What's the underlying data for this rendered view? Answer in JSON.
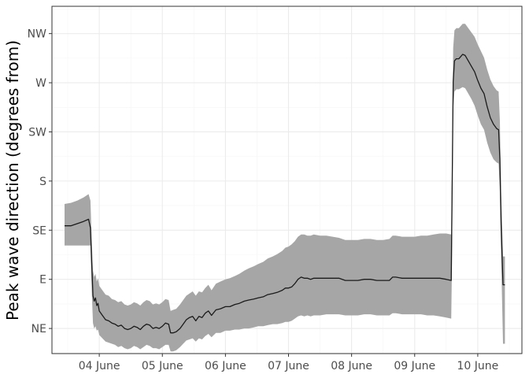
{
  "chart_data": {
    "type": "line",
    "title": "",
    "xlabel": "",
    "ylabel": "Peak wave direction (degrees from)",
    "x_unit": "day (June)",
    "x_ticks": [
      {
        "value": 4,
        "label": "04 June"
      },
      {
        "value": 5,
        "label": "05 June"
      },
      {
        "value": 6,
        "label": "06 June"
      },
      {
        "value": 7,
        "label": "07 June"
      },
      {
        "value": 8,
        "label": "08 June"
      },
      {
        "value": 9,
        "label": "09 June"
      },
      {
        "value": 10,
        "label": "10 June"
      }
    ],
    "y_ticks": [
      {
        "value": 45,
        "label": "NE"
      },
      {
        "value": 90,
        "label": "E"
      },
      {
        "value": 135,
        "label": "SE"
      },
      {
        "value": 180,
        "label": "S"
      },
      {
        "value": 225,
        "label": "SW"
      },
      {
        "value": 270,
        "label": "W"
      },
      {
        "value": 315,
        "label": "NW"
      }
    ],
    "xlim": [
      3.25,
      10.7
    ],
    "ylim": [
      22,
      340
    ],
    "grid": true,
    "colors": {
      "line": "#1a1a1a",
      "band": "#a6a6a6",
      "grid_major": "#ebebeb",
      "grid_minor": "#f5f5f5",
      "panel_border": "#333333"
    },
    "series": [
      {
        "points": [
          [
            3.45,
            139
          ],
          [
            3.55,
            139
          ],
          [
            3.65,
            141
          ],
          [
            3.75,
            143
          ],
          [
            3.83,
            145
          ],
          [
            3.86,
            137
          ],
          [
            3.88,
            105
          ],
          [
            3.9,
            75
          ],
          [
            3.92,
            70
          ],
          [
            3.94,
            73
          ],
          [
            3.96,
            66
          ],
          [
            3.98,
            68
          ],
          [
            4.0,
            61
          ],
          [
            4.05,
            57
          ],
          [
            4.1,
            53
          ],
          [
            4.15,
            52
          ],
          [
            4.2,
            50
          ],
          [
            4.25,
            49
          ],
          [
            4.3,
            47
          ],
          [
            4.35,
            48
          ],
          [
            4.4,
            45
          ],
          [
            4.45,
            44
          ],
          [
            4.5,
            45
          ],
          [
            4.55,
            47
          ],
          [
            4.6,
            46
          ],
          [
            4.65,
            44
          ],
          [
            4.7,
            47
          ],
          [
            4.75,
            49
          ],
          [
            4.8,
            48
          ],
          [
            4.85,
            45
          ],
          [
            4.9,
            46
          ],
          [
            4.95,
            45
          ],
          [
            5.0,
            47
          ],
          [
            5.05,
            50
          ],
          [
            5.1,
            49
          ],
          [
            5.13,
            41
          ],
          [
            5.17,
            41
          ],
          [
            5.22,
            42
          ],
          [
            5.28,
            45
          ],
          [
            5.33,
            49
          ],
          [
            5.38,
            53
          ],
          [
            5.43,
            55
          ],
          [
            5.48,
            56
          ],
          [
            5.53,
            52
          ],
          [
            5.58,
            56
          ],
          [
            5.63,
            55
          ],
          [
            5.68,
            59
          ],
          [
            5.73,
            61
          ],
          [
            5.78,
            57
          ],
          [
            5.85,
            62
          ],
          [
            5.92,
            63
          ],
          [
            6.0,
            65
          ],
          [
            6.07,
            65
          ],
          [
            6.15,
            67
          ],
          [
            6.22,
            68
          ],
          [
            6.3,
            70
          ],
          [
            6.37,
            71
          ],
          [
            6.45,
            72
          ],
          [
            6.52,
            73
          ],
          [
            6.6,
            74
          ],
          [
            6.67,
            76
          ],
          [
            6.75,
            77
          ],
          [
            6.82,
            78
          ],
          [
            6.9,
            80
          ],
          [
            6.95,
            82
          ],
          [
            7.0,
            82
          ],
          [
            7.05,
            83
          ],
          [
            7.1,
            86
          ],
          [
            7.15,
            90
          ],
          [
            7.2,
            92
          ],
          [
            7.25,
            91
          ],
          [
            7.3,
            91
          ],
          [
            7.35,
            90
          ],
          [
            7.4,
            91
          ],
          [
            7.5,
            91
          ],
          [
            7.6,
            91
          ],
          [
            7.7,
            91
          ],
          [
            7.8,
            91
          ],
          [
            7.9,
            89
          ],
          [
            8.0,
            89
          ],
          [
            8.1,
            89
          ],
          [
            8.2,
            90
          ],
          [
            8.3,
            90
          ],
          [
            8.4,
            89
          ],
          [
            8.5,
            89
          ],
          [
            8.6,
            89
          ],
          [
            8.65,
            92
          ],
          [
            8.7,
            92
          ],
          [
            8.8,
            91
          ],
          [
            8.9,
            91
          ],
          [
            9.0,
            91
          ],
          [
            9.1,
            91
          ],
          [
            9.2,
            91
          ],
          [
            9.3,
            91
          ],
          [
            9.4,
            91
          ],
          [
            9.5,
            90
          ],
          [
            9.58,
            89
          ],
          [
            9.59,
            155
          ],
          [
            9.61,
            271
          ],
          [
            9.63,
            290
          ],
          [
            9.66,
            292
          ],
          [
            9.7,
            292
          ],
          [
            9.73,
            294
          ],
          [
            9.76,
            296
          ],
          [
            9.8,
            295
          ],
          [
            9.85,
            290
          ],
          [
            9.9,
            285
          ],
          [
            9.95,
            280
          ],
          [
            10.0,
            272
          ],
          [
            10.05,
            265
          ],
          [
            10.1,
            260
          ],
          [
            10.15,
            248
          ],
          [
            10.2,
            238
          ],
          [
            10.25,
            232
          ],
          [
            10.3,
            228
          ],
          [
            10.33,
            227
          ],
          [
            10.35,
            200
          ],
          [
            10.37,
            140
          ],
          [
            10.4,
            85
          ],
          [
            10.43,
            85
          ]
        ],
        "band": [
          [
            3.45,
            121,
            159
          ],
          [
            3.55,
            121,
            160
          ],
          [
            3.65,
            121,
            162
          ],
          [
            3.75,
            121,
            165
          ],
          [
            3.83,
            121,
            168
          ],
          [
            3.86,
            121,
            162
          ],
          [
            3.88,
            80,
            126
          ],
          [
            3.9,
            50,
            98
          ],
          [
            3.92,
            45,
            92
          ],
          [
            3.94,
            47,
            95
          ],
          [
            3.96,
            43,
            88
          ],
          [
            3.98,
            44,
            91
          ],
          [
            4.0,
            39,
            84
          ],
          [
            4.05,
            36,
            80
          ],
          [
            4.1,
            33,
            76
          ],
          [
            4.15,
            32,
            75
          ],
          [
            4.2,
            31,
            72
          ],
          [
            4.25,
            30,
            71
          ],
          [
            4.3,
            28,
            69
          ],
          [
            4.35,
            29,
            70
          ],
          [
            4.4,
            27,
            67
          ],
          [
            4.45,
            26,
            66
          ],
          [
            4.5,
            27,
            67
          ],
          [
            4.55,
            29,
            69
          ],
          [
            4.6,
            28,
            68
          ],
          [
            4.65,
            26,
            66
          ],
          [
            4.7,
            28,
            69
          ],
          [
            4.75,
            30,
            71
          ],
          [
            4.8,
            29,
            70
          ],
          [
            4.85,
            27,
            67
          ],
          [
            4.9,
            27,
            68
          ],
          [
            4.95,
            26,
            67
          ],
          [
            5.0,
            28,
            69
          ],
          [
            5.05,
            30,
            72
          ],
          [
            5.1,
            30,
            71
          ],
          [
            5.13,
            24,
            61
          ],
          [
            5.17,
            24,
            62
          ],
          [
            5.22,
            25,
            63
          ],
          [
            5.28,
            28,
            67
          ],
          [
            5.33,
            31,
            71
          ],
          [
            5.38,
            34,
            75
          ],
          [
            5.43,
            35,
            77
          ],
          [
            5.48,
            36,
            79
          ],
          [
            5.53,
            33,
            75
          ],
          [
            5.58,
            36,
            79
          ],
          [
            5.63,
            35,
            78
          ],
          [
            5.68,
            38,
            82
          ],
          [
            5.73,
            40,
            85
          ],
          [
            5.78,
            37,
            80
          ],
          [
            5.85,
            41,
            86
          ],
          [
            5.92,
            41,
            88
          ],
          [
            6.0,
            43,
            90
          ],
          [
            6.07,
            43,
            91
          ],
          [
            6.15,
            44,
            93
          ],
          [
            6.22,
            44,
            95
          ],
          [
            6.3,
            45,
            98
          ],
          [
            6.37,
            45,
            100
          ],
          [
            6.45,
            46,
            102
          ],
          [
            6.52,
            47,
            104
          ],
          [
            6.6,
            47,
            106
          ],
          [
            6.67,
            48,
            109
          ],
          [
            6.75,
            49,
            111
          ],
          [
            6.82,
            49,
            113
          ],
          [
            6.9,
            50,
            116
          ],
          [
            6.95,
            51,
            119
          ],
          [
            7.0,
            51,
            120
          ],
          [
            7.05,
            52,
            122
          ],
          [
            7.1,
            54,
            125
          ],
          [
            7.15,
            56,
            129
          ],
          [
            7.2,
            57,
            131
          ],
          [
            7.25,
            56,
            131
          ],
          [
            7.3,
            57,
            130
          ],
          [
            7.35,
            56,
            130
          ],
          [
            7.4,
            57,
            131
          ],
          [
            7.5,
            57,
            130
          ],
          [
            7.6,
            58,
            130
          ],
          [
            7.7,
            58,
            129
          ],
          [
            7.8,
            58,
            128
          ],
          [
            7.9,
            57,
            126
          ],
          [
            8.0,
            57,
            126
          ],
          [
            8.1,
            57,
            126
          ],
          [
            8.2,
            58,
            127
          ],
          [
            8.3,
            58,
            127
          ],
          [
            8.4,
            57,
            126
          ],
          [
            8.5,
            57,
            126
          ],
          [
            8.6,
            57,
            127
          ],
          [
            8.65,
            59,
            130
          ],
          [
            8.7,
            59,
            130
          ],
          [
            8.8,
            58,
            129
          ],
          [
            8.9,
            58,
            129
          ],
          [
            9.0,
            58,
            129
          ],
          [
            9.1,
            58,
            130
          ],
          [
            9.2,
            57,
            130
          ],
          [
            9.3,
            57,
            131
          ],
          [
            9.4,
            56,
            132
          ],
          [
            9.5,
            55,
            132
          ],
          [
            9.58,
            54,
            131
          ],
          [
            9.59,
            100,
            190
          ],
          [
            9.61,
            246,
            302
          ],
          [
            9.63,
            262,
            318
          ],
          [
            9.66,
            264,
            320
          ],
          [
            9.7,
            264,
            320
          ],
          [
            9.73,
            265,
            322
          ],
          [
            9.76,
            266,
            324
          ],
          [
            9.8,
            265,
            324
          ],
          [
            9.85,
            260,
            320
          ],
          [
            9.9,
            255,
            316
          ],
          [
            9.95,
            249,
            312
          ],
          [
            10.0,
            240,
            305
          ],
          [
            10.05,
            232,
            299
          ],
          [
            10.1,
            227,
            293
          ],
          [
            10.15,
            215,
            282
          ],
          [
            10.2,
            206,
            273
          ],
          [
            10.25,
            200,
            267
          ],
          [
            10.3,
            197,
            263
          ],
          [
            10.33,
            196,
            262
          ],
          [
            10.35,
            170,
            235
          ],
          [
            10.37,
            110,
            170
          ],
          [
            10.4,
            31,
            111
          ],
          [
            10.43,
            31,
            111
          ]
        ]
      }
    ]
  }
}
